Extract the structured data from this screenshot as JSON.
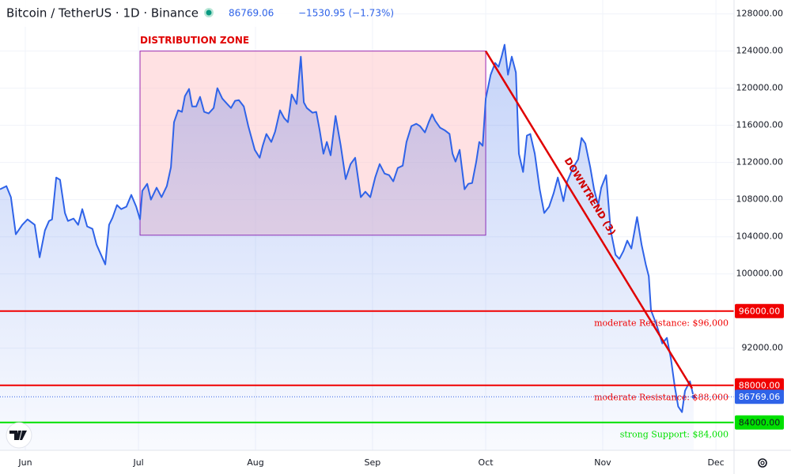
{
  "chart_data": {
    "type": "area",
    "title": "Bitcoin / TetherUS · 1D · Binance",
    "last_price": "86769.06",
    "change": "−1530.95 (−1.73%)",
    "color": "#2f63e8",
    "x": [
      -6.7,
      -5.0,
      -3.8,
      -2.5,
      -0.8,
      0.6,
      2.5,
      3.8,
      5.2,
      6.3,
      7.1,
      8.2,
      9.2,
      10.5,
      11.3,
      12.8,
      14.0,
      15.1,
      16.4,
      17.8,
      18.9,
      21.2,
      22.2,
      23.1,
      24.3,
      25.4,
      26.8,
      28.1,
      29.4,
      30.4,
      31.0,
      32.3,
      33.3,
      34.8,
      36.1,
      37.5,
      38.6,
      39.4,
      40.5,
      41.5,
      42.3,
      43.4,
      44.2,
      45.3,
      46.3,
      47.4,
      48.6,
      49.9,
      50.9,
      52.2,
      53.5,
      54.5,
      55.6,
      56.6,
      57.9,
      59.1,
      60.8,
      62.1,
      62.9,
      63.9,
      65.2,
      66.2,
      67.5,
      68.6,
      69.6,
      70.6,
      71.9,
      73.0,
      73.8,
      74.6,
      76.1,
      77.1,
      78.0,
      79.0,
      79.9,
      80.9,
      82.2,
      83.6,
      84.9,
      86.2,
      87.4,
      88.9,
      90.1,
      91.4,
      92.7,
      93.9,
      95.2,
      96.4,
      97.5,
      98.7,
      100.0,
      101.0,
      102.3,
      103.6,
      104.6,
      105.9,
      106.9,
      107.8,
      108.6,
      109.9,
      111.1,
      112.4,
      113.2,
      114.0,
      115.1,
      116.4,
      117.4,
      118.4,
      119.5,
      120.3,
      121.2,
      122.0,
      123.3,
      124.5,
      125.4,
      126.2,
      127.0,
      127.9,
      128.9,
      130.0,
      130.8,
      131.9,
      132.9,
      133.8,
      135.0,
      136.3,
      137.5,
      138.8,
      140.0,
      141.1,
      142.6,
      143.6,
      145.1,
      146.5,
      147.4,
      148.4,
      149.7,
      150.7,
      151.8,
      152.6,
      153.9,
      155.1,
      156.4,
      157.4,
      158.5,
      159.5,
      160.6,
      162.1,
      163.3,
      164.4,
      165.2,
      165.8,
      167.3,
      168.8,
      170.0,
      171.1,
      172.1,
      173.0,
      174.0,
      174.8,
      176.1,
      177.1
    ],
    "values": [
      109110,
      109450,
      108260,
      104260,
      105280,
      105870,
      105280,
      101790,
      104680,
      105700,
      105870,
      110380,
      110130,
      106560,
      105700,
      105960,
      105280,
      106980,
      105110,
      104850,
      103150,
      101020,
      105280,
      106040,
      107410,
      106980,
      107240,
      108510,
      107240,
      105870,
      108940,
      109700,
      108000,
      109280,
      108260,
      109450,
      111490,
      116340,
      117620,
      117450,
      119150,
      119920,
      118040,
      118040,
      119070,
      117450,
      117280,
      117870,
      120000,
      118890,
      118300,
      117870,
      118640,
      118720,
      118040,
      115920,
      113360,
      112510,
      113790,
      115070,
      114210,
      115320,
      117620,
      116770,
      116340,
      119320,
      118300,
      123400,
      118470,
      117870,
      117360,
      117450,
      115490,
      112940,
      114210,
      112770,
      117020,
      113790,
      110210,
      111830,
      112510,
      108260,
      108850,
      108260,
      110380,
      111830,
      110810,
      110640,
      109960,
      111410,
      111660,
      114210,
      115920,
      116170,
      115920,
      115240,
      116340,
      117190,
      116510,
      115750,
      115490,
      115070,
      112940,
      112090,
      113360,
      109110,
      109700,
      109790,
      112090,
      114210,
      113790,
      118890,
      121450,
      122720,
      122300,
      123400,
      124680,
      121450,
      123400,
      121700,
      112940,
      110980,
      114900,
      115070,
      112940,
      109110,
      106560,
      107240,
      108680,
      110380,
      107830,
      109960,
      111410,
      112340,
      114640,
      114040,
      111490,
      109110,
      107410,
      109280,
      110640,
      104680,
      102050,
      101620,
      102470,
      103580,
      102730,
      106130,
      103150,
      101020,
      99750,
      96090,
      94470,
      92510,
      93110,
      90810,
      87830,
      85710,
      85110,
      87410,
      88430,
      86769.06
    ],
    "xlim": [
      -6.7,
      187.8
    ],
    "xticks": [
      {
        "value": 0,
        "label": "Jun"
      },
      {
        "value": 30,
        "label": "Jul"
      },
      {
        "value": 61,
        "label": "Aug"
      },
      {
        "value": 92,
        "label": "Sep"
      },
      {
        "value": 122,
        "label": "Oct"
      },
      {
        "value": 153,
        "label": "Nov"
      },
      {
        "value": 183,
        "label": "Dec"
      }
    ],
    "ylim": [
      81000,
      129500
    ],
    "yticks": [
      {
        "value": 92000,
        "label": "92000.00"
      },
      {
        "value": 100000,
        "label": "100000.00"
      },
      {
        "value": 104000,
        "label": "104000.00"
      },
      {
        "value": 108000,
        "label": "108000.00"
      },
      {
        "value": 112000,
        "label": "112000.00"
      },
      {
        "value": 116000,
        "label": "116000.00"
      },
      {
        "value": 120000,
        "label": "120000.00"
      },
      {
        "value": 124000,
        "label": "124000.00"
      },
      {
        "value": 128000,
        "label": "128000.00"
      }
    ],
    "grid": true,
    "zone": {
      "label": "DISTRIBUTION ZONE",
      "x": [
        30.4,
        122.0
      ],
      "y": [
        104170,
        124000
      ]
    },
    "trend": {
      "label": "DOWNTREND (3)",
      "x": [
        122.0,
        176.7
      ],
      "y": [
        124000,
        87660
      ]
    },
    "levels": [
      {
        "value": 96000,
        "axis_label": "96000.00",
        "label": "moderate Resistance: $96,000",
        "color": "#f00000"
      },
      {
        "value": 88000,
        "axis_label": "88000.00",
        "label": "moderate Resistance: $88,000",
        "color": "#f00000"
      },
      {
        "value": 84000,
        "axis_label": "84000.00",
        "label": "strong Support: $84,000",
        "color": "#00e000"
      }
    ]
  }
}
